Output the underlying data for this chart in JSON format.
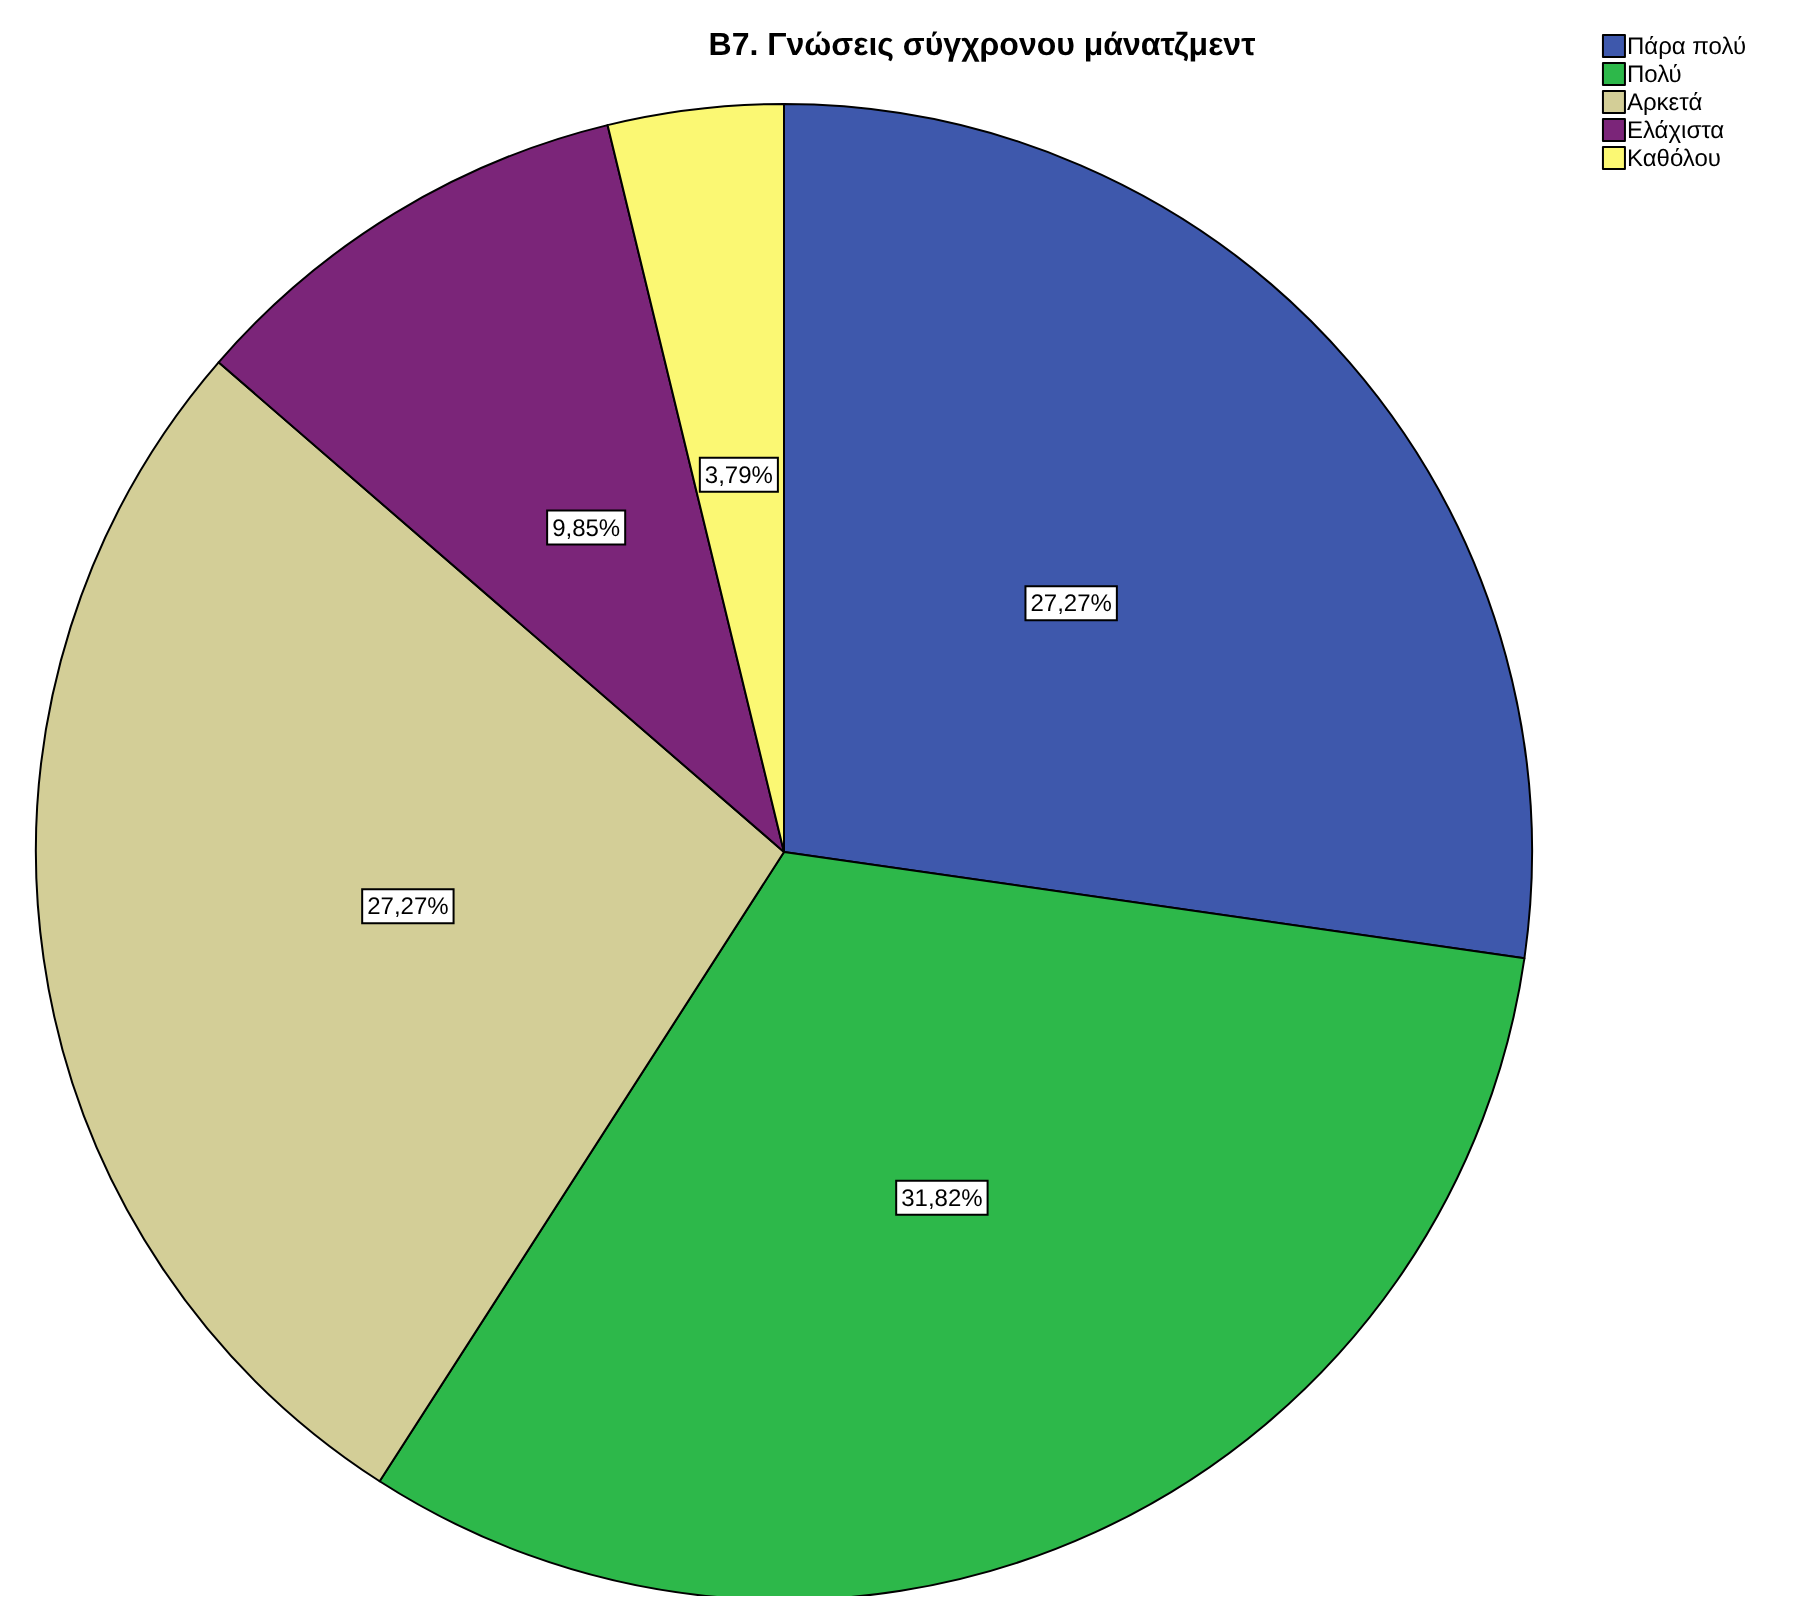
{
  "chart_data": {
    "type": "pie",
    "title": "B7. Γνώσεις σύγχρονου μάνατζμεντ",
    "categories": [
      "Πάρα πολύ",
      "Πολύ",
      "Αρκετά",
      "Ελάχιστα",
      "Καθόλου"
    ],
    "values": [
      27.27,
      31.82,
      27.27,
      9.85,
      3.79
    ],
    "colors": [
      "#3e58ac",
      "#2db84a",
      "#d3ce97",
      "#7b2579",
      "#fbf873"
    ],
    "value_labels": [
      "27,27%",
      "31,82%",
      "27,27%",
      "9,85%",
      "3,79%"
    ],
    "legend": "top right"
  }
}
